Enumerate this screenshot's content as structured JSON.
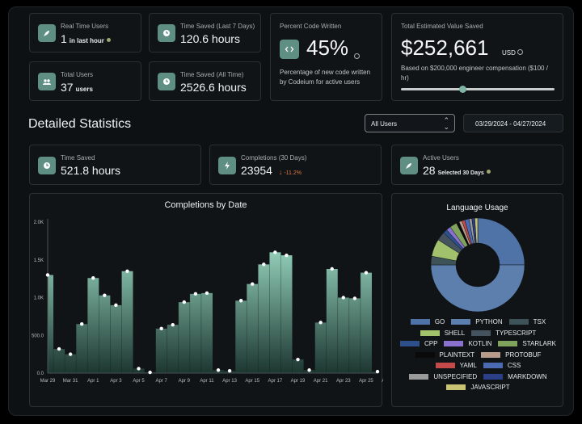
{
  "stats_top": {
    "realtime": {
      "label": "Real Time Users",
      "value": "1",
      "unit": "in last hour"
    },
    "saved7": {
      "label": "Time Saved (Last 7 Days)",
      "value": "120.6 hours"
    },
    "total_users": {
      "label": "Total Users",
      "value": "37",
      "unit": "users"
    },
    "saved_all": {
      "label": "Time Saved (All Time)",
      "value": "2526.6 hours"
    },
    "percent": {
      "label": "Percent Code Written",
      "value": "45%",
      "desc": "Percentage of new code written by Codeium for active users"
    },
    "value_saved": {
      "label": "Total Estimated Value Saved",
      "value": "$252,661",
      "currency": "USD",
      "desc": "Based on $200,000 engineer compensation ($100 / hr)",
      "slider_level": 0.4
    }
  },
  "detailed": {
    "title": "Detailed Statistics",
    "user_select": "All Users",
    "date_range": "03/29/2024 - 04/27/2024",
    "time_saved": {
      "label": "Time Saved",
      "value": "521.8 hours"
    },
    "completions": {
      "label": "Completions (30 Days)",
      "value": "23954",
      "delta": "-11.2%"
    },
    "active_users": {
      "label": "Active Users",
      "value": "28",
      "unit": "Selected 30 Days"
    }
  },
  "completions_chart": {
    "title": "Completions by Date",
    "y_ticks": [
      "2.0K",
      "1.5K",
      "1.0K",
      "500.0",
      "0.0"
    ],
    "x_ticks": [
      "Mar 29",
      "Mar 31",
      "Apr 1",
      "Apr 3",
      "Apr 5",
      "Apr 7",
      "Apr 9",
      "Apr 11",
      "Apr 13",
      "Apr 15",
      "Apr 17",
      "Apr 19",
      "Apr 21",
      "Apr 23",
      "Apr 25",
      "Apr 27"
    ]
  },
  "language_chart": {
    "title": "Language Usage",
    "legend_rows": [
      [
        {
          "name": "GO",
          "color": "#4f73a6"
        },
        {
          "name": "PYTHON",
          "color": "#5c7fae"
        },
        {
          "name": "TSX",
          "color": "#3d5358"
        }
      ],
      [
        {
          "name": "SHELL",
          "color": "#a2c16c"
        },
        {
          "name": "TYPESCRIPT",
          "color": "#44535d"
        }
      ],
      [
        {
          "name": "CPP",
          "color": "#2d4f8c"
        },
        {
          "name": "KOTLIN",
          "color": "#8a70cf"
        },
        {
          "name": "STARLARK",
          "color": "#7fa35c"
        }
      ],
      [
        {
          "name": "PLAINTEXT",
          "color": "#0a0a0a"
        },
        {
          "name": "PROTOBUF",
          "color": "#b79c8c"
        }
      ],
      [
        {
          "name": "YAML",
          "color": "#c44a4a"
        },
        {
          "name": "CSS",
          "color": "#4a6ab2"
        }
      ],
      [
        {
          "name": "UNSPECIFIED",
          "color": "#9a9a9a"
        },
        {
          "name": "MARKDOWN",
          "color": "#2b3f86"
        }
      ],
      [
        {
          "name": "JAVASCRIPT",
          "color": "#c9c374"
        }
      ]
    ]
  },
  "chart_data": [
    {
      "type": "area",
      "title": "Completions by Date",
      "xlabel": "",
      "ylabel": "",
      "ylim": [
        0,
        2000
      ],
      "x": [
        "Mar 29",
        "Mar 30",
        "Mar 31",
        "Apr 1",
        "Apr 2",
        "Apr 3",
        "Apr 4",
        "Apr 5",
        "Apr 6",
        "Apr 7",
        "Apr 8",
        "Apr 9",
        "Apr 10",
        "Apr 11",
        "Apr 12",
        "Apr 13",
        "Apr 14",
        "Apr 15",
        "Apr 16",
        "Apr 17",
        "Apr 18",
        "Apr 19",
        "Apr 20",
        "Apr 21",
        "Apr 22",
        "Apr 23",
        "Apr 24",
        "Apr 25",
        "Apr 26",
        "Apr 27"
      ],
      "values": [
        1300,
        320,
        250,
        650,
        1260,
        1030,
        900,
        1350,
        60,
        10,
        590,
        640,
        940,
        1050,
        1060,
        40,
        30,
        960,
        1180,
        1440,
        1600,
        1560,
        180,
        40,
        670,
        1380,
        1000,
        990,
        1330,
        20
      ]
    },
    {
      "type": "pie",
      "title": "Language Usage",
      "categories": [
        "GO",
        "PYTHON",
        "TSX",
        "SHELL",
        "TYPESCRIPT",
        "CPP",
        "KOTLIN",
        "STARLARK",
        "PLAINTEXT",
        "PROTOBUF",
        "YAML",
        "CSS",
        "UNSPECIFIED",
        "MARKDOWN",
        "JAVASCRIPT"
      ],
      "values": [
        25,
        50,
        3,
        6,
        3,
        1.5,
        1.5,
        2.5,
        1,
        1,
        1,
        1.5,
        1,
        1,
        1
      ],
      "colors": [
        "#4f73a6",
        "#5c7fae",
        "#3d5358",
        "#a2c16c",
        "#44535d",
        "#2d4f8c",
        "#8a70cf",
        "#7fa35c",
        "#0a0a0a",
        "#b79c8c",
        "#c44a4a",
        "#4a6ab2",
        "#9a9a9a",
        "#2b3f86",
        "#c9c374"
      ]
    }
  ]
}
